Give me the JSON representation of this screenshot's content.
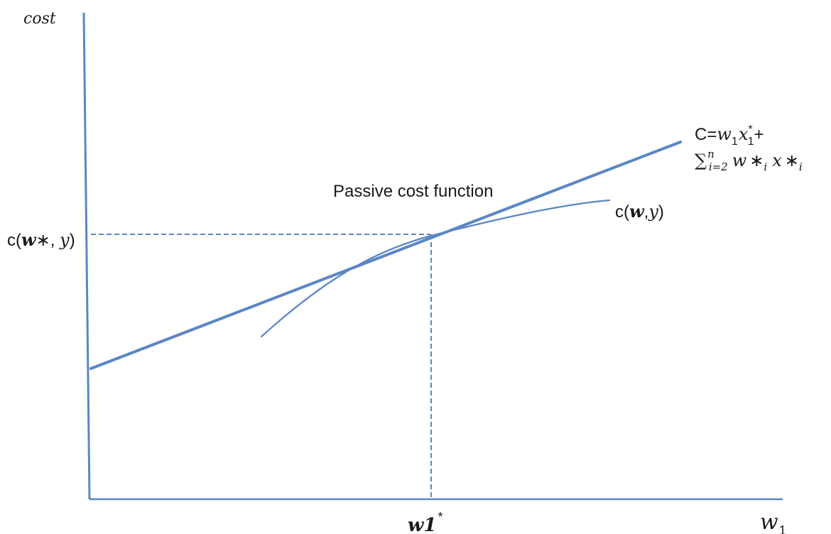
{
  "diagram": {
    "y_axis_label": "cost",
    "x_axis_label": {
      "base": "w",
      "sub": "1"
    },
    "passive_label": "Passive cost function",
    "w1_star_label": {
      "base": "w1",
      "sup": "*"
    },
    "c_w_star_y_label": {
      "prefix": "c(",
      "w": "w",
      "star": "∗",
      "sep": ", ",
      "y": "y",
      "suffix": ")"
    },
    "c_w_y_label": {
      "prefix": "c(",
      "w": "w",
      "sep": ",",
      "y": "y",
      "suffix": ")"
    },
    "formula_line1": {
      "C": "C",
      "eq": "=",
      "w": "w",
      "w_sub": "1",
      "x": "x",
      "x_sup": "*",
      "x_sub": "1",
      "plus": "+"
    },
    "formula_line2": {
      "sum": "∑",
      "sum_sup": "n",
      "sum_sub": "i=2",
      "w": "w",
      "star1": "∗",
      "i1": "i",
      "x": "x",
      "star2": "∗",
      "i2": "i"
    },
    "colors": {
      "line": "#5a86c5",
      "text": "#1a1a1a"
    }
  }
}
